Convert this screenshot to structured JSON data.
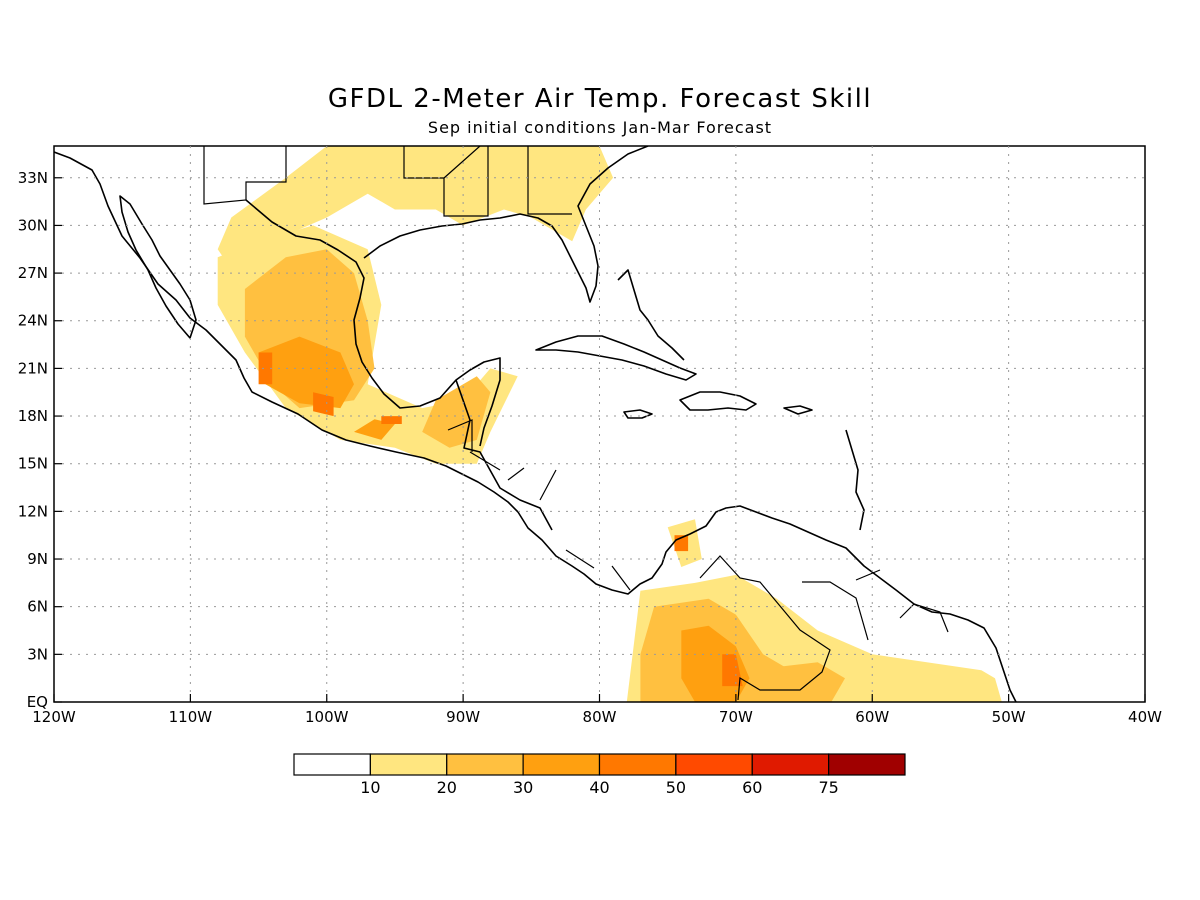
{
  "title": "GFDL 2-Meter Air Temp. Forecast Skill",
  "subtitle": "Sep initial conditions  Jan-Mar Forecast",
  "map": {
    "lon_range": [
      -120,
      -40
    ],
    "lat_range": [
      0,
      35
    ],
    "lon_ticks": [
      {
        "lon": -120,
        "label": "120W"
      },
      {
        "lon": -110,
        "label": "110W"
      },
      {
        "lon": -100,
        "label": "100W"
      },
      {
        "lon": -90,
        "label": "90W"
      },
      {
        "lon": -80,
        "label": "80W"
      },
      {
        "lon": -70,
        "label": "70W"
      },
      {
        "lon": -60,
        "label": "60W"
      },
      {
        "lon": -50,
        "label": "50W"
      },
      {
        "lon": -40,
        "label": "40W"
      }
    ],
    "lat_ticks": [
      {
        "lat": 0,
        "label": "EQ"
      },
      {
        "lat": 3,
        "label": "3N"
      },
      {
        "lat": 6,
        "label": "6N"
      },
      {
        "lat": 9,
        "label": "9N"
      },
      {
        "lat": 12,
        "label": "12N"
      },
      {
        "lat": 15,
        "label": "15N"
      },
      {
        "lat": 18,
        "label": "18N"
      },
      {
        "lat": 21,
        "label": "21N"
      },
      {
        "lat": 24,
        "label": "24N"
      },
      {
        "lat": 27,
        "label": "27N"
      },
      {
        "lat": 30,
        "label": "30N"
      },
      {
        "lat": 33,
        "label": "33N"
      }
    ],
    "grid": true
  },
  "colorbar": {
    "colors": [
      "#ffffff",
      "#ffe680",
      "#ffc040",
      "#ffa010",
      "#ff7800",
      "#ff4a00",
      "#e01a00",
      "#a00000"
    ],
    "labels": [
      "10",
      "20",
      "30",
      "40",
      "50",
      "60",
      "75"
    ]
  },
  "skill_regions": [
    {
      "level": 1,
      "points": [
        [
          -104,
          29
        ],
        [
          -100,
          30.5
        ],
        [
          -97,
          32
        ],
        [
          -95,
          31
        ],
        [
          -92,
          31
        ],
        [
          -90,
          30
        ],
        [
          -87,
          31
        ],
        [
          -85,
          30.5
        ],
        [
          -82,
          29
        ],
        [
          -81,
          31
        ],
        [
          -79,
          33
        ],
        [
          -80,
          35
        ],
        [
          -100,
          35
        ],
        [
          -103,
          33
        ],
        [
          -107,
          30.5
        ],
        [
          -108,
          28.5
        ],
        [
          -106,
          26
        ]
      ]
    },
    {
      "level": 1,
      "points": [
        [
          -108,
          28
        ],
        [
          -105,
          29
        ],
        [
          -101,
          30
        ],
        [
          -97,
          28.5
        ],
        [
          -96,
          25
        ],
        [
          -97,
          20
        ],
        [
          -93,
          18.5
        ],
        [
          -90,
          19
        ],
        [
          -88,
          21
        ],
        [
          -86,
          20.5
        ],
        [
          -88,
          17
        ],
        [
          -89,
          15
        ],
        [
          -92,
          15
        ],
        [
          -95,
          16
        ],
        [
          -99,
          16.5
        ],
        [
          -103,
          18.5
        ],
        [
          -106,
          22
        ],
        [
          -108,
          25
        ]
      ]
    },
    {
      "level": 1,
      "points": [
        [
          -77,
          7
        ],
        [
          -73,
          7.5
        ],
        [
          -70,
          8
        ],
        [
          -67,
          6.5
        ],
        [
          -64,
          4.5
        ],
        [
          -60,
          3
        ],
        [
          -56,
          2.5
        ],
        [
          -52,
          2
        ],
        [
          -51,
          1.5
        ],
        [
          -50.5,
          0
        ],
        [
          -78,
          0
        ]
      ]
    },
    {
      "level": 1,
      "points": [
        [
          -75,
          11
        ],
        [
          -73,
          11.5
        ],
        [
          -72.5,
          9
        ],
        [
          -74,
          8.5
        ]
      ]
    },
    {
      "level": 2,
      "points": [
        [
          -106,
          26
        ],
        [
          -103,
          28
        ],
        [
          -100,
          28.5
        ],
        [
          -98,
          27
        ],
        [
          -97,
          24
        ],
        [
          -96.5,
          21
        ],
        [
          -98,
          19
        ],
        [
          -102,
          18.5
        ],
        [
          -104,
          20
        ],
        [
          -106,
          23
        ]
      ]
    },
    {
      "level": 2,
      "points": [
        [
          -92,
          19
        ],
        [
          -89,
          20.5
        ],
        [
          -88,
          19.5
        ],
        [
          -89,
          16.5
        ],
        [
          -91,
          16
        ],
        [
          -93,
          17
        ]
      ]
    },
    {
      "level": 2,
      "points": [
        [
          -76,
          6
        ],
        [
          -72,
          6.5
        ],
        [
          -70,
          5.5
        ],
        [
          -68,
          3
        ],
        [
          -66,
          2
        ],
        [
          -68,
          0
        ],
        [
          -77,
          0
        ],
        [
          -77,
          3
        ]
      ]
    },
    {
      "level": 2,
      "points": [
        [
          -69,
          2
        ],
        [
          -64,
          2.5
        ],
        [
          -62,
          1.5
        ],
        [
          -63,
          0
        ],
        [
          -69,
          0
        ]
      ]
    },
    {
      "level": 3,
      "points": [
        [
          -105,
          22
        ],
        [
          -102,
          23
        ],
        [
          -99,
          22
        ],
        [
          -98,
          20
        ],
        [
          -99,
          18.5
        ],
        [
          -102,
          18.8
        ],
        [
          -104.5,
          20
        ]
      ]
    },
    {
      "level": 3,
      "points": [
        [
          -74,
          4.5
        ],
        [
          -72,
          4.8
        ],
        [
          -70,
          3.5
        ],
        [
          -69,
          1.5
        ],
        [
          -70,
          0
        ],
        [
          -73,
          0
        ],
        [
          -74,
          1.5
        ]
      ]
    },
    {
      "level": 3,
      "points": [
        [
          -98,
          17
        ],
        [
          -96.5,
          17.8
        ],
        [
          -95,
          17.5
        ],
        [
          -96,
          16.5
        ]
      ]
    },
    {
      "level": 4,
      "points": [
        [
          -105,
          22
        ],
        [
          -104,
          22
        ],
        [
          -104,
          20
        ],
        [
          -105,
          20
        ]
      ]
    },
    {
      "level": 4,
      "points": [
        [
          -101,
          19.5
        ],
        [
          -99.5,
          19.2
        ],
        [
          -99.5,
          18
        ],
        [
          -101,
          18.3
        ]
      ]
    },
    {
      "level": 4,
      "points": [
        [
          -71,
          3
        ],
        [
          -70,
          3
        ],
        [
          -69.5,
          1
        ],
        [
          -71,
          1
        ]
      ]
    },
    {
      "level": 4,
      "points": [
        [
          -74.5,
          10.5
        ],
        [
          -73.5,
          10.5
        ],
        [
          -73.5,
          9.5
        ],
        [
          -74.5,
          9.5
        ]
      ]
    },
    {
      "level": 4,
      "points": [
        [
          -96,
          18
        ],
        [
          -94.5,
          18
        ],
        [
          -94.5,
          17.5
        ],
        [
          -96,
          17.5
        ]
      ]
    }
  ]
}
